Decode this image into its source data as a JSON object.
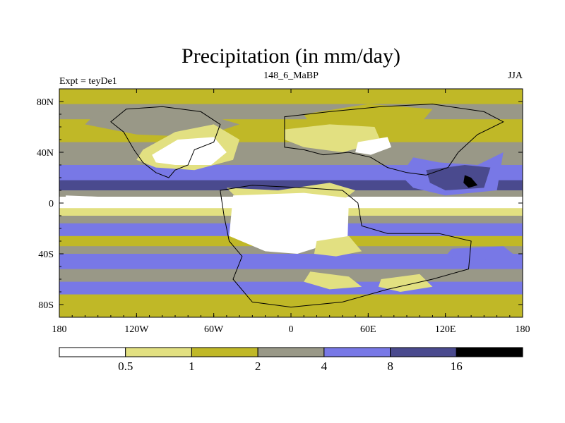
{
  "chart_data": {
    "type": "contour-map",
    "title": "Precipitation (in mm/day)",
    "subtitle_left": "Expt = teyDe1",
    "subtitle_center": "148_6_MaBP",
    "subtitle_right": "JJA",
    "x_ticks": [
      "180",
      "120W",
      "60W",
      "0",
      "60E",
      "120E",
      "180"
    ],
    "x_tick_values": [
      -180,
      -120,
      -60,
      0,
      60,
      120,
      180
    ],
    "y_ticks": [
      "80N",
      "40N",
      "0",
      "40S",
      "80S"
    ],
    "y_tick_values": [
      80,
      40,
      0,
      -40,
      -80
    ],
    "xlim": [
      -180,
      180
    ],
    "ylim": [
      -90,
      90
    ],
    "colorbar": {
      "levels": [
        "0.5",
        "1",
        "2",
        "4",
        "8",
        "16"
      ],
      "colors": [
        "#ffffff",
        "#e2e081",
        "#c0b827",
        "#999887",
        "#7878e6",
        "#4a4a8e",
        "#000000"
      ]
    },
    "zonal_bands": [
      {
        "lat_from": 90,
        "lat_to": 78,
        "class": 2
      },
      {
        "lat_from": 78,
        "lat_to": 66,
        "class": 3
      },
      {
        "lat_from": 66,
        "lat_to": 48,
        "class": 2
      },
      {
        "lat_from": 48,
        "lat_to": 30,
        "class": 3
      },
      {
        "lat_from": 30,
        "lat_to": 18,
        "class": 4
      },
      {
        "lat_from": 18,
        "lat_to": 10,
        "class": 5
      },
      {
        "lat_from": 10,
        "lat_to": 5,
        "class": 3
      },
      {
        "lat_from": 5,
        "lat_to": -4,
        "class": 0
      },
      {
        "lat_from": -4,
        "lat_to": -10,
        "class": 1
      },
      {
        "lat_from": -10,
        "lat_to": -16,
        "class": 3
      },
      {
        "lat_from": -16,
        "lat_to": -26,
        "class": 4
      },
      {
        "lat_from": -26,
        "lat_to": -34,
        "class": 2
      },
      {
        "lat_from": -34,
        "lat_to": -40,
        "class": 3
      },
      {
        "lat_from": -40,
        "lat_to": -52,
        "class": 4
      },
      {
        "lat_from": -52,
        "lat_to": -62,
        "class": 3
      },
      {
        "lat_from": -62,
        "lat_to": -72,
        "class": 4
      },
      {
        "lat_from": -72,
        "lat_to": -90,
        "class": 2
      }
    ],
    "patches": [
      {
        "type": "blob",
        "class": 3,
        "pts": [
          [
            -150,
            72
          ],
          [
            -80,
            74
          ],
          [
            -40,
            62
          ],
          [
            -70,
            52
          ],
          [
            -120,
            54
          ],
          [
            -160,
            62
          ]
        ]
      },
      {
        "type": "blob",
        "class": 1,
        "pts": [
          [
            -115,
            42
          ],
          [
            -90,
            56
          ],
          [
            -60,
            62
          ],
          [
            -40,
            50
          ],
          [
            -45,
            34
          ],
          [
            -75,
            26
          ],
          [
            -105,
            28
          ],
          [
            -120,
            34
          ]
        ]
      },
      {
        "type": "blob",
        "class": 0,
        "pts": [
          [
            -108,
            38
          ],
          [
            -88,
            50
          ],
          [
            -60,
            52
          ],
          [
            -50,
            40
          ],
          [
            -62,
            30
          ],
          [
            -90,
            30
          ],
          [
            -105,
            32
          ]
        ]
      },
      {
        "type": "blob",
        "class": 1,
        "pts": [
          [
            -5,
            58
          ],
          [
            30,
            62
          ],
          [
            65,
            60
          ],
          [
            70,
            48
          ],
          [
            40,
            40
          ],
          [
            10,
            44
          ],
          [
            -5,
            50
          ]
        ]
      },
      {
        "type": "blob",
        "class": 0,
        "pts": [
          [
            52,
            48
          ],
          [
            75,
            52
          ],
          [
            78,
            44
          ],
          [
            62,
            38
          ],
          [
            50,
            40
          ]
        ]
      },
      {
        "type": "blob",
        "class": 2,
        "pts": [
          [
            10,
            70
          ],
          [
            60,
            78
          ],
          [
            110,
            74
          ],
          [
            100,
            62
          ],
          [
            50,
            64
          ],
          [
            15,
            62
          ]
        ]
      },
      {
        "type": "blob",
        "class": 4,
        "pts": [
          [
            95,
            36
          ],
          [
            115,
            32
          ],
          [
            145,
            30
          ],
          [
            165,
            40
          ],
          [
            160,
            10
          ],
          [
            120,
            6
          ],
          [
            95,
            12
          ],
          [
            85,
            22
          ]
        ]
      },
      {
        "type": "blob",
        "class": 5,
        "pts": [
          [
            105,
            26
          ],
          [
            135,
            30
          ],
          [
            155,
            28
          ],
          [
            150,
            12
          ],
          [
            120,
            10
          ],
          [
            108,
            16
          ]
        ]
      },
      {
        "type": "blob",
        "class": 6,
        "pts": [
          [
            135,
            22
          ],
          [
            140,
            20
          ],
          [
            145,
            14
          ],
          [
            138,
            12
          ],
          [
            134,
            16
          ]
        ]
      },
      {
        "type": "blob",
        "class": 1,
        "pts": [
          [
            -50,
            12
          ],
          [
            -10,
            10
          ],
          [
            30,
            16
          ],
          [
            50,
            10
          ],
          [
            40,
            2
          ],
          [
            0,
            -2
          ],
          [
            -40,
            2
          ]
        ]
      },
      {
        "type": "blob",
        "class": 0,
        "pts": [
          [
            -45,
            6
          ],
          [
            10,
            8
          ],
          [
            45,
            4
          ],
          [
            44,
            -28
          ],
          [
            30,
            -32
          ],
          [
            5,
            -40
          ],
          [
            -20,
            -38
          ],
          [
            -48,
            -26
          ]
        ]
      },
      {
        "type": "blob",
        "class": 1,
        "pts": [
          [
            20,
            -30
          ],
          [
            45,
            -26
          ],
          [
            55,
            -38
          ],
          [
            35,
            -42
          ],
          [
            18,
            -40
          ]
        ]
      },
      {
        "type": "blob",
        "class": 1,
        "pts": [
          [
            15,
            -54
          ],
          [
            45,
            -58
          ],
          [
            55,
            -66
          ],
          [
            30,
            -68
          ],
          [
            10,
            -62
          ]
        ]
      },
      {
        "type": "blob",
        "class": 1,
        "pts": [
          [
            70,
            -60
          ],
          [
            100,
            -56
          ],
          [
            110,
            -66
          ],
          [
            85,
            -70
          ],
          [
            68,
            -66
          ]
        ]
      },
      {
        "type": "blob",
        "class": 0,
        "pts": [
          [
            -175,
            6
          ],
          [
            -150,
            5
          ],
          [
            -150,
            -2
          ],
          [
            -175,
            -3
          ]
        ]
      },
      {
        "type": "blob",
        "class": 0,
        "pts": [
          [
            155,
            4
          ],
          [
            180,
            5
          ],
          [
            180,
            -2
          ],
          [
            158,
            -2
          ]
        ]
      },
      {
        "type": "blob",
        "class": 4,
        "pts": [
          [
            125,
            -36
          ],
          [
            165,
            -34
          ],
          [
            175,
            -42
          ],
          [
            140,
            -46
          ],
          [
            120,
            -42
          ]
        ]
      }
    ],
    "land_outlines": [
      {
        "name": "north-america",
        "pts": [
          [
            -128,
            74
          ],
          [
            -100,
            76
          ],
          [
            -70,
            72
          ],
          [
            -55,
            62
          ],
          [
            -60,
            48
          ],
          [
            -75,
            42
          ],
          [
            -80,
            30
          ],
          [
            -90,
            26
          ],
          [
            -95,
            20
          ],
          [
            -105,
            24
          ],
          [
            -115,
            32
          ],
          [
            -122,
            42
          ],
          [
            -130,
            56
          ],
          [
            -140,
            64
          ]
        ]
      },
      {
        "name": "eurasia",
        "pts": [
          [
            -5,
            68
          ],
          [
            30,
            72
          ],
          [
            70,
            76
          ],
          [
            110,
            78
          ],
          [
            150,
            72
          ],
          [
            165,
            64
          ],
          [
            145,
            54
          ],
          [
            130,
            40
          ],
          [
            122,
            28
          ],
          [
            105,
            22
          ],
          [
            90,
            24
          ],
          [
            75,
            28
          ],
          [
            62,
            36
          ],
          [
            45,
            40
          ],
          [
            25,
            38
          ],
          [
            10,
            42
          ],
          [
            -5,
            44
          ]
        ]
      },
      {
        "name": "gondwana",
        "pts": [
          [
            -55,
            10
          ],
          [
            -30,
            14
          ],
          [
            10,
            12
          ],
          [
            40,
            10
          ],
          [
            52,
            0
          ],
          [
            55,
            -18
          ],
          [
            75,
            -24
          ],
          [
            115,
            -24
          ],
          [
            140,
            -30
          ],
          [
            138,
            -52
          ],
          [
            110,
            -60
          ],
          [
            75,
            -68
          ],
          [
            40,
            -78
          ],
          [
            0,
            -82
          ],
          [
            -30,
            -78
          ],
          [
            -45,
            -60
          ],
          [
            -38,
            -42
          ],
          [
            -48,
            -30
          ],
          [
            -52,
            -10
          ]
        ]
      }
    ]
  }
}
